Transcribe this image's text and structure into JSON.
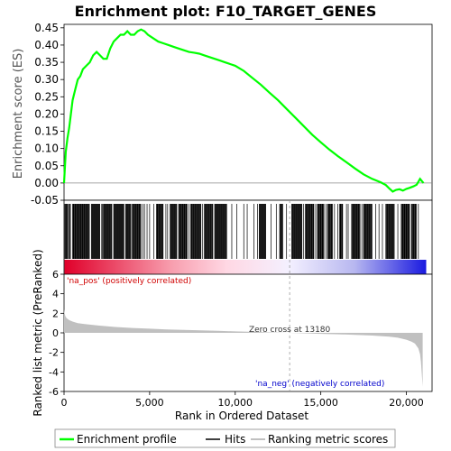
{
  "chart_data": {
    "type": "line",
    "title": "Enrichment plot: F10_TARGET_GENES",
    "colors": {
      "enrichment_line": "#00ff00",
      "hits": "#000000",
      "ranking_fill": "#c0c0c0",
      "pos_label": "#d00000",
      "neg_label": "#0000cc",
      "zero_line": "#888888"
    },
    "top_panel": {
      "ylabel": "Enrichment score (ES)",
      "ylim": [
        -0.05,
        0.46
      ],
      "yticks": [
        -0.05,
        0.0,
        0.05,
        0.1,
        0.15,
        0.2,
        0.25,
        0.3,
        0.35,
        0.4,
        0.45
      ],
      "ytick_labels": [
        "-0.05",
        "0.00",
        "0.05",
        "0.10",
        "0.15",
        "0.20",
        "0.25",
        "0.30",
        "0.35",
        "0.40",
        "0.45"
      ],
      "series": [
        {
          "name": "Enrichment profile",
          "x": [
            0,
            100,
            200,
            300,
            400,
            500,
            650,
            800,
            950,
            1100,
            1300,
            1500,
            1700,
            1900,
            2100,
            2300,
            2500,
            2700,
            2900,
            3100,
            3300,
            3500,
            3700,
            3900,
            4100,
            4300,
            4500,
            4700,
            4900,
            5200,
            5500,
            5800,
            6100,
            6400,
            6700,
            7000,
            7300,
            7600,
            7900,
            8200,
            8500,
            8800,
            9100,
            9400,
            9700,
            10000,
            10500,
            11000,
            11500,
            12000,
            12500,
            13000,
            13500,
            14000,
            14500,
            15000,
            15500,
            16000,
            16500,
            17000,
            17500,
            18000,
            18500,
            18800,
            19000,
            19200,
            19400,
            19600,
            19800,
            20000,
            20200,
            20400,
            20600,
            20800,
            21000
          ],
          "y": [
            0.0,
            0.09,
            0.13,
            0.16,
            0.2,
            0.24,
            0.27,
            0.3,
            0.31,
            0.33,
            0.34,
            0.35,
            0.37,
            0.38,
            0.37,
            0.36,
            0.36,
            0.39,
            0.41,
            0.42,
            0.43,
            0.43,
            0.44,
            0.43,
            0.43,
            0.44,
            0.445,
            0.44,
            0.43,
            0.42,
            0.41,
            0.405,
            0.4,
            0.395,
            0.39,
            0.385,
            0.38,
            0.378,
            0.375,
            0.37,
            0.365,
            0.36,
            0.355,
            0.35,
            0.345,
            0.34,
            0.325,
            0.305,
            0.285,
            0.262,
            0.24,
            0.215,
            0.19,
            0.165,
            0.14,
            0.118,
            0.097,
            0.078,
            0.06,
            0.042,
            0.025,
            0.012,
            0.002,
            -0.006,
            -0.016,
            -0.025,
            -0.02,
            -0.018,
            -0.022,
            -0.017,
            -0.014,
            -0.01,
            -0.005,
            0.012,
            0.0
          ]
        }
      ]
    },
    "hits": {
      "name": "Hits",
      "dense_ranges": [
        [
          50,
          250
        ],
        [
          300,
          400
        ],
        [
          500,
          1500
        ],
        [
          1600,
          2100
        ],
        [
          2300,
          2800
        ],
        [
          2900,
          3500
        ],
        [
          3600,
          3900
        ],
        [
          4000,
          4500
        ],
        [
          5400,
          5800
        ],
        [
          6200,
          6600
        ],
        [
          6700,
          7200
        ],
        [
          7400,
          8000
        ],
        [
          8200,
          8700
        ],
        [
          8800,
          9500
        ],
        [
          11400,
          11800
        ],
        [
          12600,
          12800
        ],
        [
          13300,
          13900
        ],
        [
          14100,
          14600
        ],
        [
          14800,
          15200
        ],
        [
          15400,
          15700
        ],
        [
          16100,
          16300
        ],
        [
          16800,
          17300
        ],
        [
          17500,
          18000
        ],
        [
          18800,
          19300
        ],
        [
          19700,
          20200
        ],
        [
          20300,
          20600
        ]
      ],
      "sparse": [
        2200,
        2250,
        3950,
        4600,
        4700,
        4850,
        5000,
        5250,
        5950,
        6050,
        7300,
        8100,
        9800,
        10100,
        10500,
        10700,
        11100,
        11300,
        12100,
        12400,
        13000,
        14000,
        14700,
        15300,
        15800,
        16000,
        16500,
        16600,
        17400,
        18200,
        18400,
        18600,
        19500,
        20700
      ]
    },
    "bottom_panel": {
      "ylabel": "Ranked list metric (PreRanked)",
      "xlabel": "Rank in Ordered Dataset",
      "ylim": [
        -6,
        6
      ],
      "yticks": [
        -6,
        -4,
        -2,
        0,
        2,
        4,
        6
      ],
      "ytick_labels": [
        "-6",
        "-4",
        "-2",
        "0",
        "2",
        "4",
        "6"
      ],
      "xlim": [
        0,
        21500
      ],
      "xticks": [
        0,
        5000,
        10000,
        15000,
        20000
      ],
      "xtick_labels": [
        "0",
        "5,000",
        "10,000",
        "15,000",
        "20,000"
      ],
      "zero_cross": 13180,
      "zero_cross_label": "Zero cross at 13180",
      "pos_label": "'na_pos' (positively correlated)",
      "neg_label": "'na_neg' (negatively correlated)",
      "metric": {
        "name": "Ranking metric scores",
        "x": [
          0,
          30,
          80,
          150,
          300,
          500,
          800,
          1200,
          2000,
          3000,
          4000,
          5000,
          6000,
          7000,
          8000,
          9000,
          10000,
          11000,
          12000,
          13180,
          14000,
          15000,
          16000,
          17000,
          18000,
          18500,
          19000,
          19500,
          20000,
          20300,
          20500,
          20700,
          20800,
          20850,
          20900,
          20950
        ],
        "y": [
          2.4,
          2.0,
          1.7,
          1.5,
          1.3,
          1.15,
          1.0,
          0.9,
          0.75,
          0.6,
          0.5,
          0.42,
          0.35,
          0.3,
          0.25,
          0.2,
          0.15,
          0.1,
          0.05,
          0.0,
          -0.05,
          -0.1,
          -0.15,
          -0.2,
          -0.28,
          -0.33,
          -0.4,
          -0.5,
          -0.7,
          -0.9,
          -1.1,
          -1.6,
          -2.2,
          -3.0,
          -4.2,
          -5.5
        ]
      }
    },
    "legend": {
      "placement": "bottom",
      "items": [
        "Enrichment profile",
        "Hits",
        "Ranking metric scores"
      ]
    }
  }
}
